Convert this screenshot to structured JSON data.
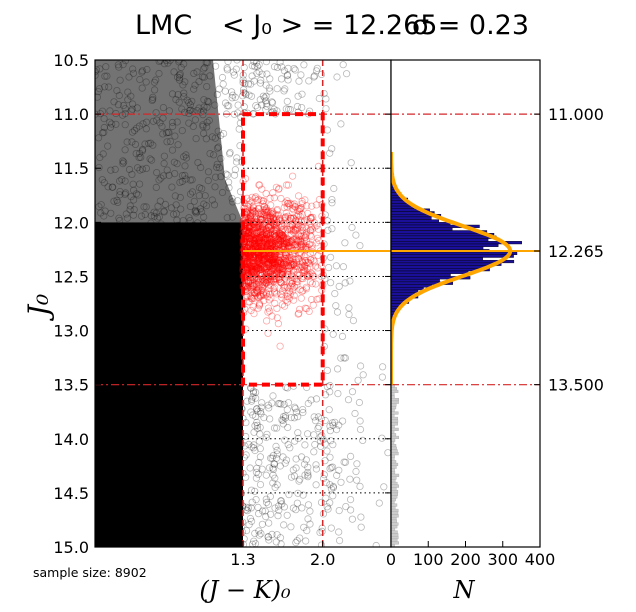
{
  "chart_data": {
    "type": "scatter",
    "title_prefix": "LMC",
    "title_mean_label": "< J₀ > = 12.265",
    "title_sigma_label": "σ = 0.23",
    "ylabel": "J₀",
    "xlabel": "(J − K)₀",
    "sample_size_label": "sample size: 8902",
    "yrange": [
      10.5,
      15.0
    ],
    "y_inverted": true,
    "y_ticks": [
      "10.5",
      "11.0",
      "11.5",
      "12.0",
      "12.5",
      "13.0",
      "13.5",
      "14.0",
      "14.5",
      "15.0"
    ],
    "x_ticks": [
      "1.3",
      "2.0"
    ],
    "x_tick_values": [
      1.3,
      2.0
    ],
    "x_range": [
      0.0,
      2.6
    ],
    "selection_box": {
      "x_min": 1.3,
      "x_max": 2.0,
      "y_min": 11.0,
      "y_max": 13.5,
      "color": "#ff0000"
    },
    "hist_x_ticks": [
      "0",
      "100",
      "200",
      "300",
      "400"
    ],
    "hist_x_values": [
      0,
      100,
      200,
      300,
      400
    ],
    "hist_xlabel": "N",
    "hist_range": [
      0,
      400
    ],
    "hist_bin_width": 0.025,
    "right_labels": [
      {
        "value": 11.0,
        "text": "11.000"
      },
      {
        "value": 12.265,
        "text": "12.265"
      },
      {
        "value": 13.5,
        "text": "13.500"
      }
    ],
    "mean": 12.265,
    "sigma": 0.23,
    "fit_peak_n": 320,
    "dotted_lines": [
      11.5,
      12.0,
      12.5,
      13.0,
      14.0,
      14.5
    ],
    "colors": {
      "selected_points": "#ff0000",
      "background_points": "#000000",
      "histogram_selected": "#1a0f99",
      "histogram_outside": "#cccccc",
      "fit_curve": "#ffa500",
      "guide_lines": "#d62728"
    }
  }
}
